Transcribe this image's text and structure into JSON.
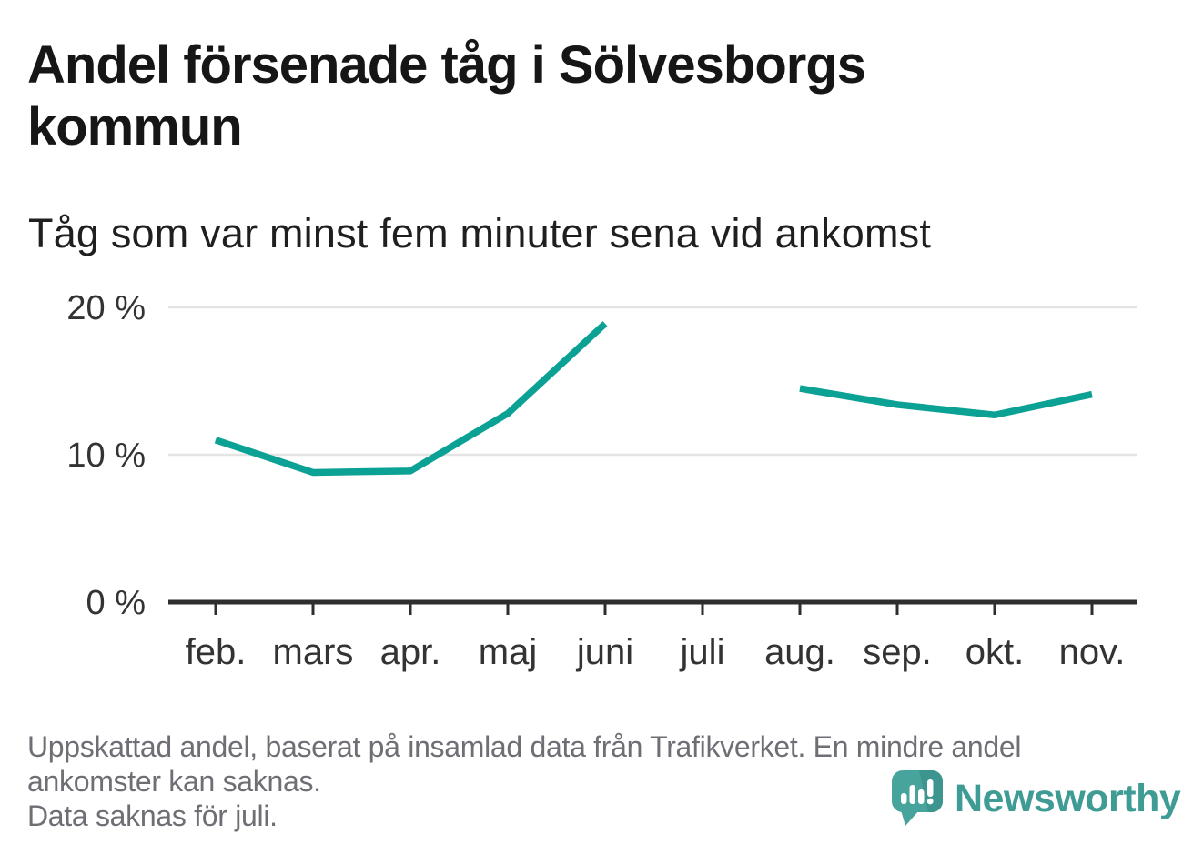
{
  "chart_data": {
    "type": "line",
    "title": "Andel försenade tåg i Sölvesborgs kommun",
    "subtitle": "Tåg som var minst fem minuter sena vid ankomst",
    "categories": [
      "feb.",
      "mars",
      "apr.",
      "maj",
      "juni",
      "juli",
      "aug.",
      "sep.",
      "okt.",
      "nov."
    ],
    "values": [
      11.0,
      8.8,
      8.9,
      12.8,
      18.9,
      null,
      14.5,
      13.4,
      12.7,
      14.1
    ],
    "unit": "%",
    "yticks": [
      0,
      10,
      20
    ],
    "ytick_labels": [
      "0 %",
      "10 %",
      "20 %"
    ],
    "ylim": [
      0,
      22
    ],
    "xlabel": "",
    "ylabel": "",
    "grid": true,
    "legend": false,
    "missing_months": [
      "juli"
    ]
  },
  "footer": {
    "lines": [
      "Uppskattad andel, baserat på insamlad data från Trafikverket. En mindre andel",
      "ankomster kan saknas.",
      "Data saknas för juli."
    ]
  },
  "logo": {
    "name": "Newsworthy"
  },
  "colors": {
    "line": "#0ba195",
    "grid": "#e4e4e4",
    "axis": "#2e2e2e",
    "label": "#333333",
    "title_text": "#161616",
    "subtitle_text": "#1f1f1f",
    "footnote_text": "#6e6e75",
    "logo_teal": "#47a49d",
    "logo_teal_dark": "#3c958e",
    "logo_wordmark": "#3e9c95"
  }
}
